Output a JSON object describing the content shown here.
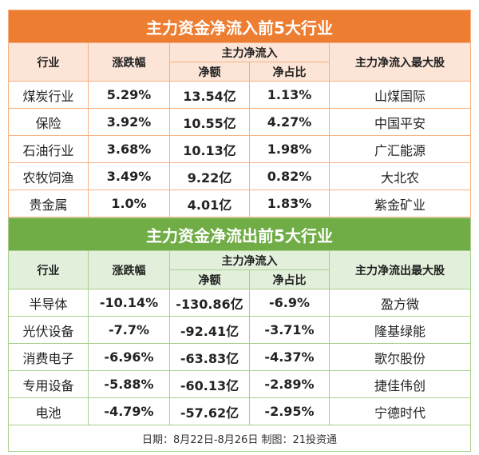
{
  "inflow": {
    "title": "主力资金净流入前5大行业",
    "headers": {
      "industry": "行业",
      "change": "涨跌幅",
      "net_flow": "主力净流入",
      "amount": "净额",
      "ratio": "净占比",
      "top_stock": "主力净流入最大股"
    },
    "rows": [
      [
        "煤炭行业",
        "5.29%",
        "13.54亿",
        "1.13%",
        "山煤国际"
      ],
      [
        "保险",
        "3.92%",
        "10.55亿",
        "4.27%",
        "中国平安"
      ],
      [
        "石油行业",
        "3.68%",
        "10.13亿",
        "1.98%",
        "广汇能源"
      ],
      [
        "农牧饲渔",
        "3.49%",
        "9.22亿",
        "0.82%",
        "大北农"
      ],
      [
        "贵金属",
        "1.0%",
        "4.01亿",
        "1.83%",
        "紫金矿业"
      ]
    ]
  },
  "outflow": {
    "title": "主力资金净流出前5大行业",
    "headers": {
      "industry": "行业",
      "change": "涨跌幅",
      "net_flow": "主力净流入",
      "amount": "净额",
      "ratio": "净占比",
      "top_stock": "主力净流出最大股"
    },
    "rows": [
      [
        "半导体",
        "-10.14%",
        "-130.86亿",
        "-6.9%",
        "盈方微"
      ],
      [
        "光伏设备",
        "-7.7%",
        "-92.41亿",
        "-3.71%",
        "隆基绿能"
      ],
      [
        "消费电子",
        "-6.96%",
        "-63.83亿",
        "-4.37%",
        "歌尔股份"
      ],
      [
        "专用设备",
        "-5.88%",
        "-60.13亿",
        "-2.89%",
        "捷佳伟创"
      ],
      [
        "电池",
        "-4.79%",
        "-57.62亿",
        "-2.95%",
        "宁德时代"
      ]
    ]
  },
  "footer": "日期：8月22日-8月26日 制图：21投资通",
  "colors": {
    "inflow": "#ED7D31",
    "outflow": "#70AD47"
  }
}
